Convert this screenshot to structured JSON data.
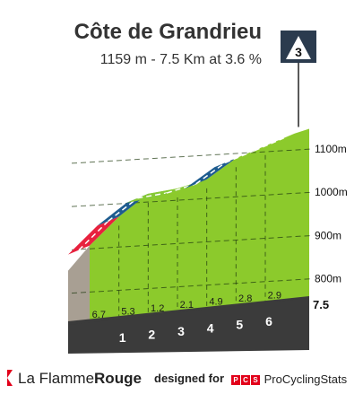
{
  "header": {
    "title": "Côte de Grandrieu",
    "subtitle": "1159 m - 7.5 Km at 3.6 %",
    "category_badge": "3"
  },
  "chart_data": {
    "type": "area",
    "title": "Côte de Grandrieu",
    "subtitle": "1159 m - 7.5 Km at 3.6 %",
    "category": "3",
    "x_unit": "km",
    "total_distance_km": 7.5,
    "distance_ticks": [
      "1",
      "2",
      "3",
      "4",
      "5",
      "6"
    ],
    "end_label": "7.5",
    "elevation_labels": [
      "800m",
      "900m",
      "1000m",
      "1100m"
    ],
    "ylim": [
      710,
      1160
    ],
    "profile": [
      {
        "km": 0,
        "elevation": 889
      },
      {
        "km": 1,
        "elevation": 956
      },
      {
        "km": 2,
        "elevation": 1009
      },
      {
        "km": 3,
        "elevation": 1021
      },
      {
        "km": 4,
        "elevation": 1042
      },
      {
        "km": 5,
        "elevation": 1091
      },
      {
        "km": 6,
        "elevation": 1119
      },
      {
        "km": 7,
        "elevation": 1148
      },
      {
        "km": 7.5,
        "elevation": 1159
      }
    ],
    "segments": [
      {
        "gradient": "6.7",
        "color": "#e8213e"
      },
      {
        "gradient": "5.3",
        "color": "#1e5c8f"
      },
      {
        "gradient": "1.2",
        "color": "#86c934"
      },
      {
        "gradient": "2.1",
        "color": "#86c934"
      },
      {
        "gradient": "4.9",
        "color": "#1e5c8f"
      },
      {
        "gradient": "2.8",
        "color": "#86c934"
      },
      {
        "gradient": "2.9",
        "color": "#86c934"
      }
    ],
    "colors": {
      "fill": "#8cca2c",
      "grid": "#1f3a0f",
      "base_band": "#3b3b3b",
      "side": "#a89f93"
    }
  },
  "footer": {
    "brand_light": "La Flamme",
    "brand_bold": "Rouge",
    "designed_for": "designed for",
    "pcs_letters": [
      "P",
      "C",
      "S"
    ],
    "pcs_name": "ProCyclingStats"
  }
}
